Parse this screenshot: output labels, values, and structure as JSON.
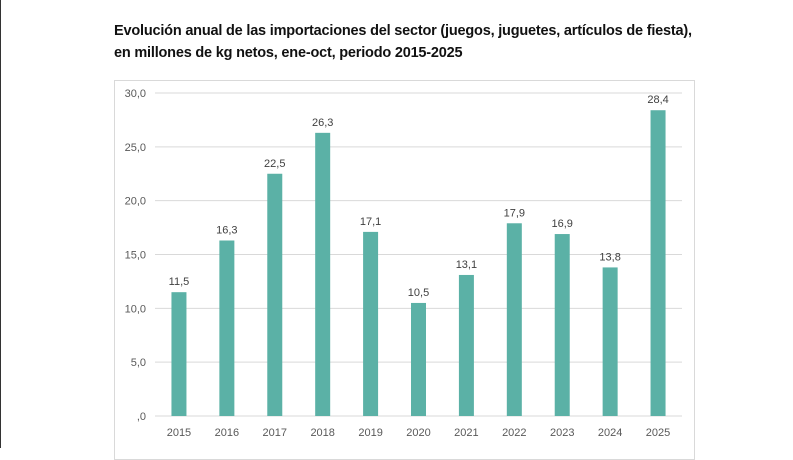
{
  "chart_data": {
    "type": "bar",
    "title": "Evolución anual de las importaciones del sector (juegos, juguetes, artículos de fiesta), en millones de kg netos, ene-oct, periodo 2015-2025",
    "title_lines": [
      "Evolución anual de las importaciones del sector (juegos, juguetes, artículos de fiesta),",
      "en millones de kg netos, ene-oct, periodo 2015-2025"
    ],
    "categories": [
      "2015",
      "2016",
      "2017",
      "2018",
      "2019",
      "2020",
      "2021",
      "2022",
      "2023",
      "2024",
      "2025"
    ],
    "values": [
      11.5,
      16.3,
      22.5,
      26.3,
      17.1,
      10.5,
      13.1,
      17.9,
      16.9,
      13.8,
      28.4
    ],
    "data_labels": [
      "11,5",
      "16,3",
      "22,5",
      "26,3",
      "17,1",
      "10,5",
      "13,1",
      "17,9",
      "16,9",
      "13,8",
      "28,4"
    ],
    "yticks": [
      0,
      5,
      10,
      15,
      20,
      25,
      30
    ],
    "ytick_labels": [
      ",0",
      "5,0",
      "10,0",
      "15,0",
      "20,0",
      "25,0",
      "30,0"
    ],
    "ylim": [
      0,
      30
    ],
    "xlabel": "",
    "ylabel": "",
    "grid": true,
    "legend": "none",
    "bar_color": "#5BB1A6"
  }
}
